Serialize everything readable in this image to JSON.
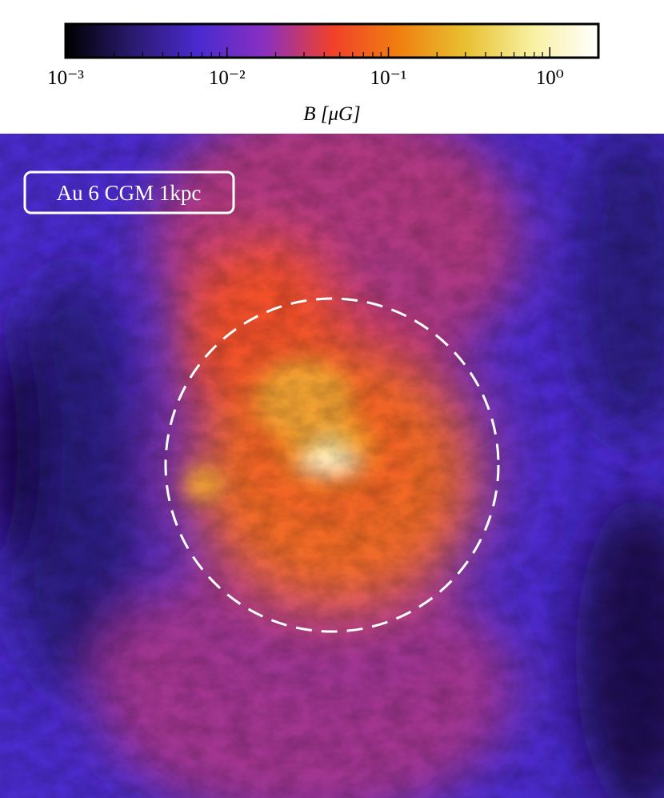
{
  "chart_data": {
    "type": "image",
    "annotation": "Au 6 CGM 1kpc",
    "colorbar": {
      "label": "B [μG]",
      "xscale": "log",
      "xlim": [
        0.001,
        2
      ],
      "xticks": [
        {
          "value": 0.001,
          "label": "10⁻³"
        },
        {
          "value": 0.01,
          "label": "10⁻²"
        },
        {
          "value": 0.1,
          "label": "10⁻¹"
        },
        {
          "value": 1,
          "label": "10⁰"
        }
      ],
      "xminorticks": [
        0.002,
        0.003,
        0.004,
        0.005,
        0.006,
        0.007,
        0.008,
        0.009,
        0.02,
        0.03,
        0.04,
        0.05,
        0.06,
        0.07,
        0.08,
        0.09,
        0.2,
        0.3,
        0.4,
        0.5,
        0.6,
        0.7,
        0.8,
        0.9
      ],
      "colormap": [
        "#000000",
        "#2a1a6e",
        "#4a2ad0",
        "#8a30c0",
        "#f0402a",
        "#f07f10",
        "#e8c030",
        "#f8f0a0",
        "#ffffff"
      ]
    }
  }
}
